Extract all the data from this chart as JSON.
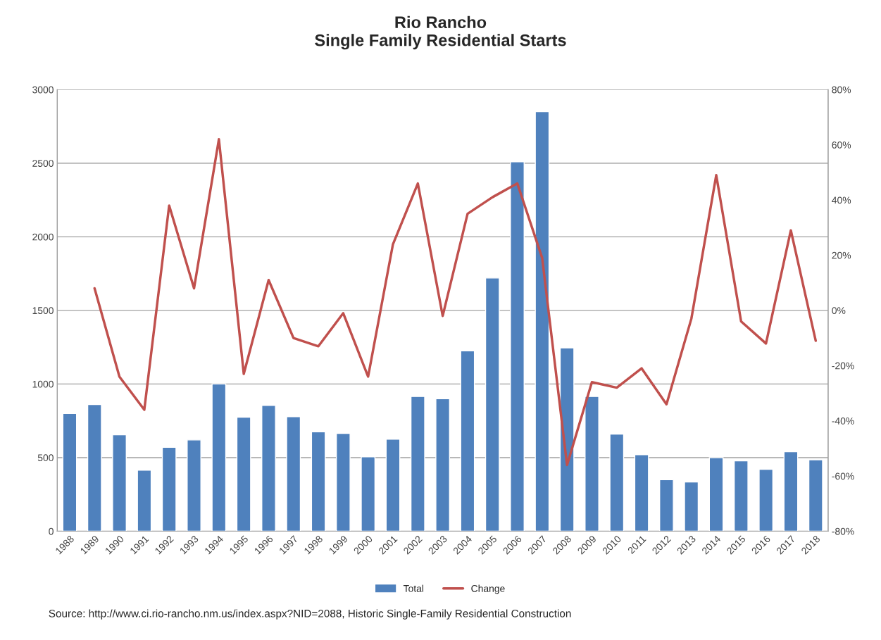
{
  "chart_data": {
    "type": "bar",
    "title": "Rio Rancho\nSingle Family Residential Starts",
    "categories": [
      "1988",
      "1989",
      "1990",
      "1991",
      "1992",
      "1993",
      "1994",
      "1995",
      "1996",
      "1997",
      "1998",
      "1999",
      "2000",
      "2001",
      "2002",
      "2003",
      "2004",
      "2005",
      "2006",
      "2007",
      "2008",
      "2009",
      "2010",
      "2011",
      "2012",
      "2013",
      "2014",
      "2015",
      "2016",
      "2017",
      "2018"
    ],
    "series": [
      {
        "name": "Total",
        "color": "#4f81bd",
        "values": [
          800,
          860,
          655,
          415,
          570,
          620,
          1000,
          775,
          855,
          778,
          675,
          665,
          505,
          625,
          915,
          900,
          1225,
          1720,
          2510,
          2850,
          1245,
          915,
          660,
          520,
          350,
          335,
          500,
          478,
          420,
          540,
          485
        ]
      },
      {
        "name": "Change",
        "type": "line",
        "axis": "y2",
        "color": "#c0504d",
        "values": [
          null,
          8,
          -24,
          -36,
          38,
          8,
          62,
          -23,
          11,
          -10,
          -13,
          -1,
          -24,
          24,
          46,
          -2,
          35,
          41,
          46,
          19,
          -56,
          -26,
          -28,
          -21,
          -34,
          -3,
          49,
          -4,
          -12,
          29,
          -11
        ]
      }
    ],
    "ylim": [
      0,
      3000
    ],
    "yticks": [
      0,
      500,
      1000,
      1500,
      2000,
      2500,
      3000
    ],
    "y2lim": [
      -80,
      80
    ],
    "y2ticks": [
      {
        "value": -80,
        "label": "-80%"
      },
      {
        "value": -60,
        "label": "-60%"
      },
      {
        "value": -40,
        "label": "-40%"
      },
      {
        "value": -20,
        "label": "-20%"
      },
      {
        "value": 0,
        "label": "0%"
      },
      {
        "value": 20,
        "label": "20%"
      },
      {
        "value": 40,
        "label": "40%"
      },
      {
        "value": 60,
        "label": "60%"
      },
      {
        "value": 80,
        "label": "80%"
      }
    ],
    "grid": "y",
    "legend": "bottom",
    "annotations": [
      "Source: http://www.ci.rio-rancho.nm.us/index.aspx?NID=2088, Historic Single-Family Residential Construction"
    ]
  }
}
